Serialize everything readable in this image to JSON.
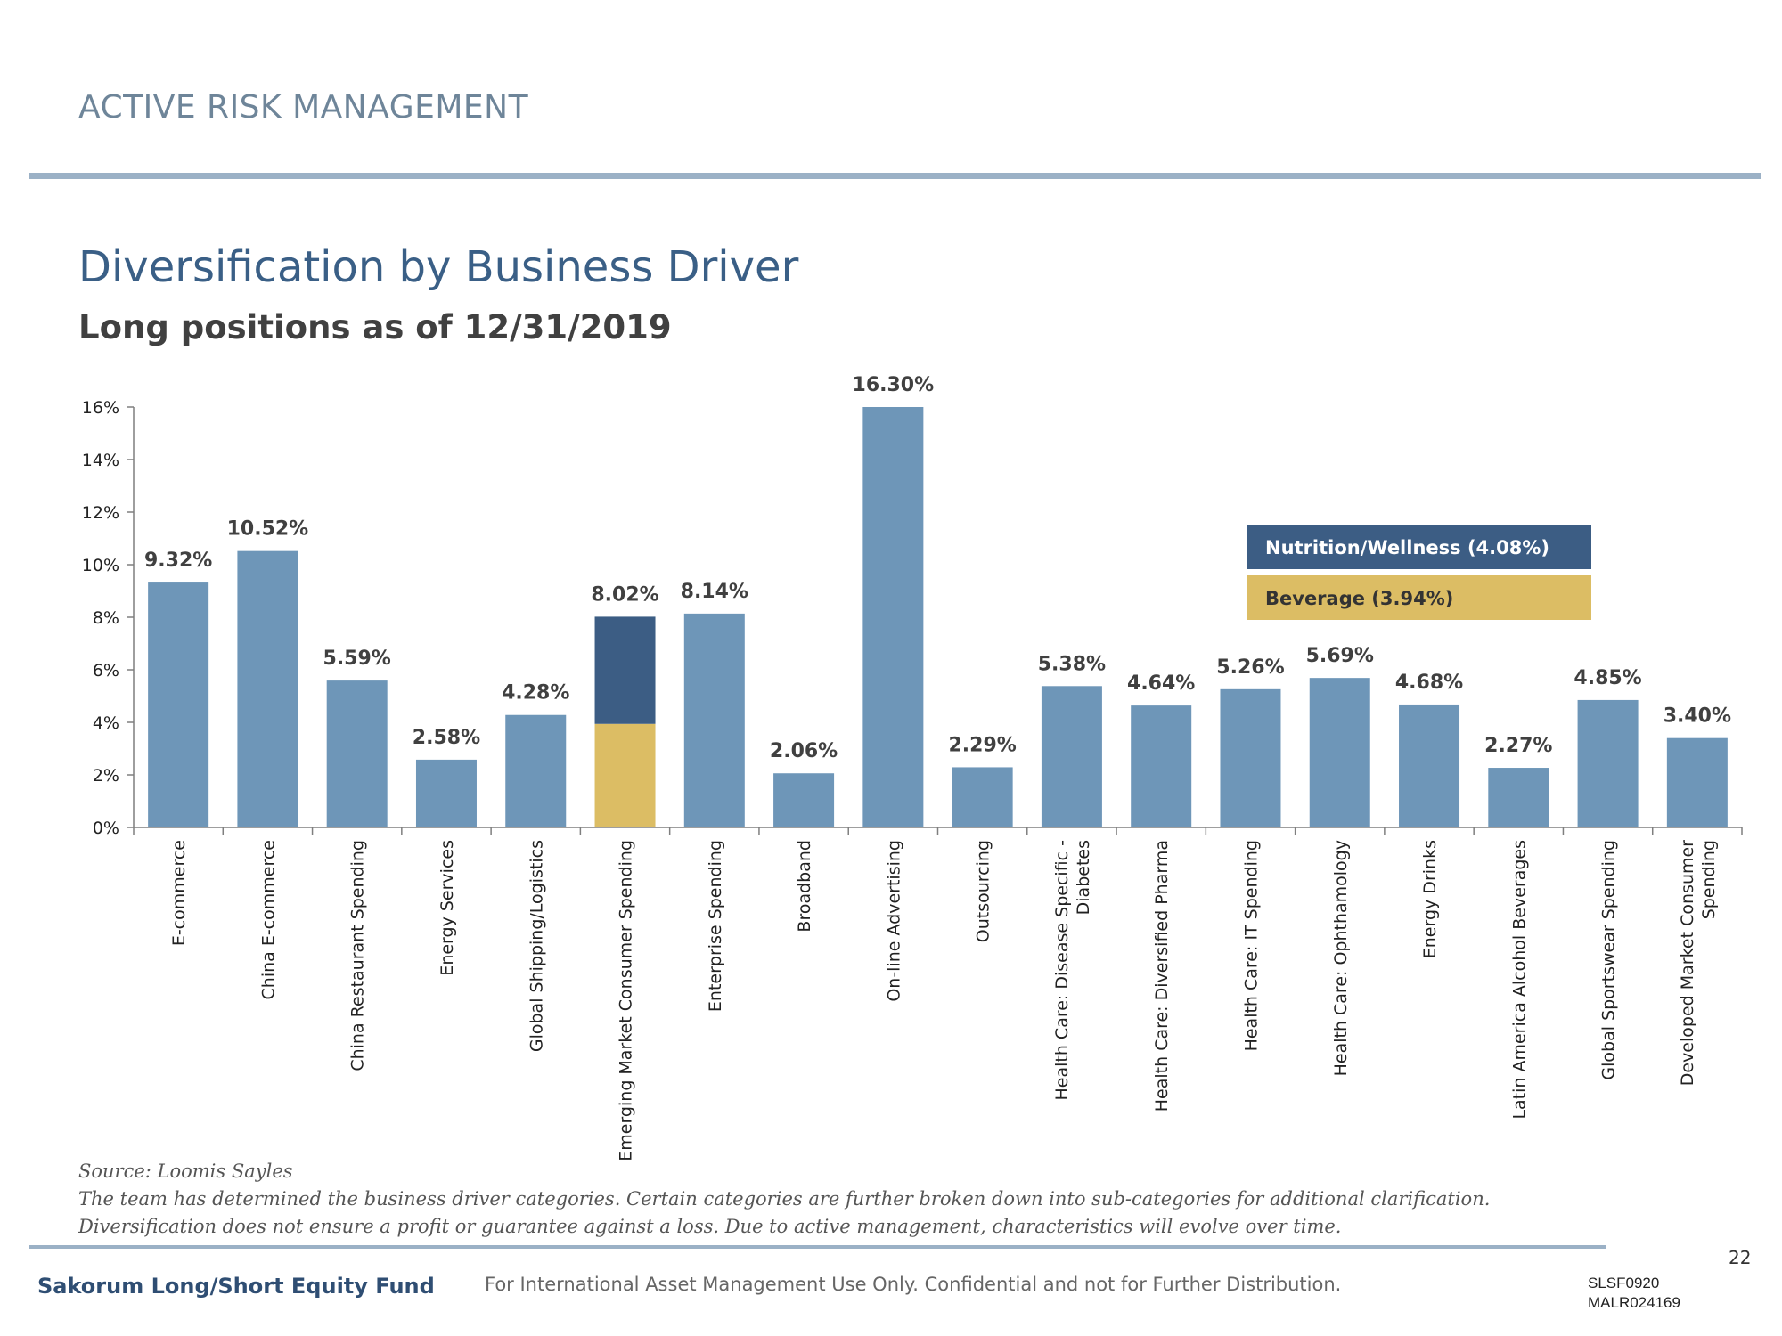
{
  "header": {
    "section_title": "ACTIVE RISK MANAGEMENT",
    "title": "Diversification by Business Driver",
    "subtitle": "Long positions as of 12/31/2019"
  },
  "chart_data": {
    "type": "bar",
    "title": "Diversification by Business Driver",
    "subtitle": "Long positions as of 12/31/2019",
    "xlabel": "",
    "ylabel": "",
    "ylim": [
      0,
      16
    ],
    "yticks": [
      "0%",
      "2%",
      "4%",
      "6%",
      "8%",
      "10%",
      "12%",
      "14%",
      "16%"
    ],
    "grid": false,
    "categories": [
      [
        "E-commerce"
      ],
      [
        "China E-commerce"
      ],
      [
        "China Restaurant Spending"
      ],
      [
        "Energy Services"
      ],
      [
        "Global Shipping/Logistics"
      ],
      [
        "Emerging Market Consumer Spending"
      ],
      [
        "Enterprise Spending"
      ],
      [
        "Broadband"
      ],
      [
        "On-line Advertising"
      ],
      [
        "Outsourcing"
      ],
      [
        "Health Care: Disease Specific -",
        "Diabetes"
      ],
      [
        "Health Care: Diversified Pharma"
      ],
      [
        "Health Care: IT Spending"
      ],
      [
        "Health Care: Ophthamology"
      ],
      [
        "Energy Drinks"
      ],
      [
        "Latin America Alcohol Beverages"
      ],
      [
        "Global Sportswear Spending"
      ],
      [
        "Developed Market Consumer",
        "Spending"
      ]
    ],
    "values": [
      9.32,
      10.52,
      5.59,
      2.58,
      4.28,
      8.02,
      8.14,
      2.06,
      16.3,
      2.29,
      5.38,
      4.64,
      5.26,
      5.69,
      4.68,
      2.27,
      4.85,
      3.4
    ],
    "value_labels": [
      "9.32%",
      "10.52%",
      "5.59%",
      "2.58%",
      "4.28%",
      "8.02%",
      "8.14%",
      "2.06%",
      "16.30%",
      "2.29%",
      "5.38%",
      "4.64%",
      "5.26%",
      "5.69%",
      "4.68%",
      "2.27%",
      "4.85%",
      "3.40%"
    ],
    "bar_color": "#6e96b8",
    "stacked_breakdown": {
      "category_index": 5,
      "segments": [
        {
          "name": "Beverage (3.94%)",
          "value": 3.94,
          "color": "#dcbd64"
        },
        {
          "name": "Nutrition/Wellness (4.08%)",
          "value": 4.08,
          "color": "#3c5d84"
        }
      ]
    },
    "legend": {
      "placement": "top-right",
      "entries": [
        {
          "label": "Nutrition/Wellness (4.08%)",
          "color": "#3c5d84",
          "text_color": "#ffffff"
        },
        {
          "label": "Beverage (3.94%)",
          "color": "#dcbd64",
          "text_color": "#333333"
        }
      ]
    }
  },
  "notes": {
    "source": "Source: Loomis Sayles",
    "line1": "The team has determined the business driver categories. Certain categories are further broken down into sub-categories for additional clarification.",
    "line2": "Diversification does not ensure a profit or guarantee against a loss. Due to active management, characteristics will evolve over time."
  },
  "footer": {
    "page_number": "22",
    "fund_name": "Sakorum Long/Short Equity Fund",
    "disclaimer": "For International Asset Management Use Only. Confidential and not for Further Distribution.",
    "code_1": "SLSF0920",
    "code_2": "MALR024169"
  }
}
